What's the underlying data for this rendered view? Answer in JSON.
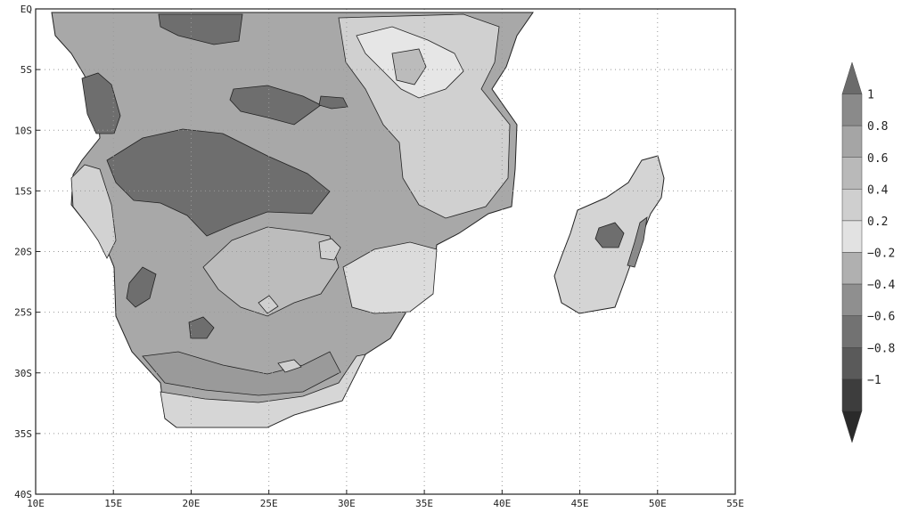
{
  "map": {
    "lon_labels": [
      "10E",
      "15E",
      "20E",
      "25E",
      "30E",
      "35E",
      "40E",
      "45E",
      "50E",
      "55E"
    ],
    "lat_labels": [
      "EQ",
      "5S",
      "10S",
      "15S",
      "20S",
      "25S",
      "30S",
      "35S",
      "40S"
    ],
    "grid": "dotted",
    "region": "Southern Africa and Madagascar"
  },
  "colorbar": {
    "labels": [
      "1",
      "0.8",
      "0.6",
      "0.4",
      "0.2",
      "−0.2",
      "−0.4",
      "−0.6",
      "−0.8",
      "−1"
    ],
    "shades": [
      "#6b6b6b",
      "#8a8a8a",
      "#a5a5a5",
      "#b9b9b9",
      "#cfcfcf",
      "#e2e2e2",
      "#b0b0b0",
      "#8f8f8f",
      "#727272",
      "#5a5a5a",
      "#3d3d3d",
      "#2a2a2a"
    ]
  },
  "colors": {
    "ocean": "#ffffff",
    "land_base": "#a8a8a8",
    "dark": "#6c6c6c",
    "light": "#d2d2d2",
    "lighter": "#e3e3e3",
    "mid": "#bababa"
  }
}
